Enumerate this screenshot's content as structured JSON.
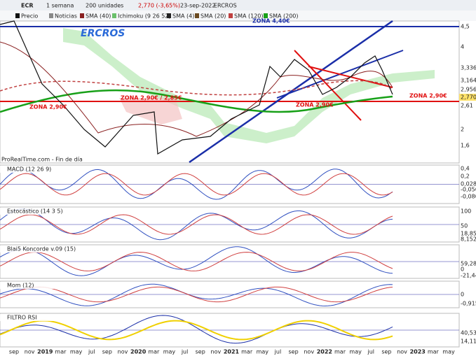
{
  "toolbar": {
    "symbol": "ECR",
    "period": "1 semana",
    "units": "200 unidades",
    "quote": "2,770 (-3,65%)",
    "date": "23-sep-2022",
    "name": "ERCROS"
  },
  "legend": [
    "Precio",
    "Noticias",
    "SMA (40)",
    "Ichimoku (9 26 52)",
    "SMA (4)",
    "SMA (20)",
    "SMA (120)",
    "SMA (200)"
  ],
  "main": {
    "title": "ERCROS",
    "annotations": [
      "ZONA 4,40€",
      "ZONA 2,90€",
      "ZONA 2,90€ / 2,85€",
      "ZONA 2,90€",
      "ZONA 2,90€"
    ],
    "source": "ProRealTime.com - Fin de día",
    "axis": [
      "4,5",
      "4",
      "3,336",
      "3,164",
      "2,956",
      "2,770",
      "2,61",
      "2",
      "1,6"
    ]
  },
  "panels": [
    {
      "title": "MACD (12 26 9)",
      "axis": [
        "0,4",
        "0,2",
        "0,028",
        "-0,056",
        "-0,080"
      ]
    },
    {
      "title": "Estocástico (14 3 5)",
      "axis": [
        "100",
        "50",
        "18,85",
        "8,152"
      ]
    },
    {
      "title": "Blai5 Koncorde v.09 (15)",
      "axis": [
        "59,28",
        "0",
        "-21,44"
      ]
    },
    {
      "title": "Mom (12)",
      "axis": [
        "0",
        "-0,915"
      ]
    },
    {
      "title": "FILTRO RSI",
      "axis": [
        "40,53",
        "14,11"
      ]
    }
  ],
  "xaxis": [
    "sep",
    "nov",
    "2019",
    "mar",
    "may",
    "jul",
    "sep",
    "nov",
    "2020",
    "mar",
    "may",
    "jul",
    "sep",
    "nov",
    "2021",
    "mar",
    "may",
    "jul",
    "sep",
    "nov",
    "2022",
    "mar",
    "may",
    "jul",
    "sep",
    "nov",
    "2023",
    "mar",
    "may"
  ]
}
